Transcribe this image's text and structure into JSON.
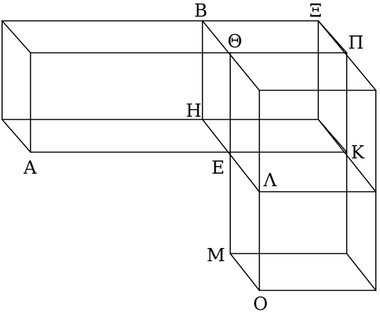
{
  "diagram": {
    "labels": {
      "A": "Α",
      "B": "Β",
      "E": "Ε",
      "H": "Η",
      "Theta": "Θ",
      "K": "Κ",
      "Lambda": "Λ",
      "M": "Μ",
      "Xi": "Ξ",
      "O": "Ο",
      "Pi": "Π"
    },
    "line_color": "#000000",
    "background": "#ffffff"
  }
}
